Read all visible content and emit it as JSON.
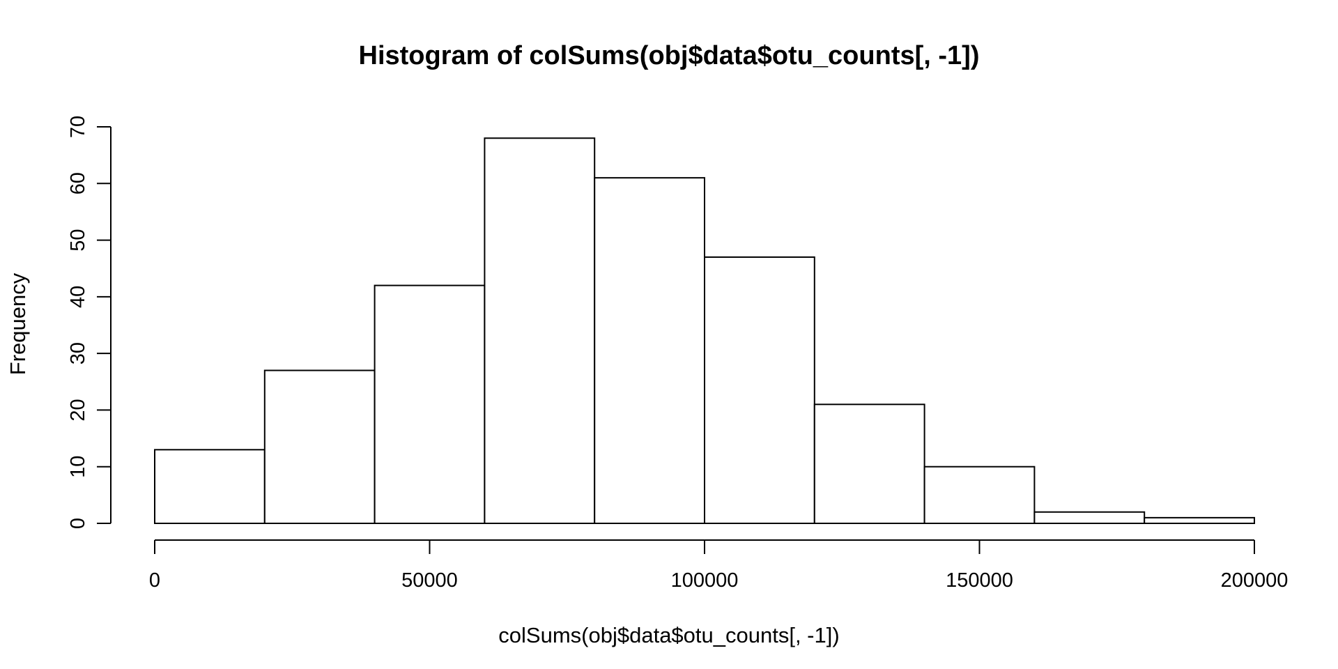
{
  "chart_data": {
    "type": "bar",
    "subtype": "histogram",
    "title": "Histogram of colSums(obj$data$otu_counts[, -1])",
    "xlabel": "colSums(obj$data$otu_counts[, -1])",
    "ylabel": "Frequency",
    "xlim": [
      0,
      200000
    ],
    "ylim": [
      0,
      70
    ],
    "bin_width": 20000,
    "bins": [
      {
        "from": 0,
        "to": 20000,
        "count": 13
      },
      {
        "from": 20000,
        "to": 40000,
        "count": 27
      },
      {
        "from": 40000,
        "to": 60000,
        "count": 42
      },
      {
        "from": 60000,
        "to": 80000,
        "count": 68
      },
      {
        "from": 80000,
        "to": 100000,
        "count": 61
      },
      {
        "from": 100000,
        "to": 120000,
        "count": 47
      },
      {
        "from": 120000,
        "to": 140000,
        "count": 21
      },
      {
        "from": 140000,
        "to": 160000,
        "count": 10
      },
      {
        "from": 160000,
        "to": 180000,
        "count": 2
      },
      {
        "from": 180000,
        "to": 200000,
        "count": 1
      }
    ],
    "x_ticks": [
      0,
      50000,
      100000,
      150000,
      200000
    ],
    "x_tick_labels": [
      "0",
      "50000",
      "100000",
      "150000",
      "200000"
    ],
    "y_ticks": [
      0,
      10,
      20,
      30,
      40,
      50,
      60,
      70
    ],
    "y_tick_labels": [
      "0",
      "10",
      "20",
      "30",
      "40",
      "50",
      "60",
      "70"
    ],
    "grid": false,
    "legend": "none",
    "bar_fill": "#ffffff",
    "bar_stroke": "#000000"
  }
}
